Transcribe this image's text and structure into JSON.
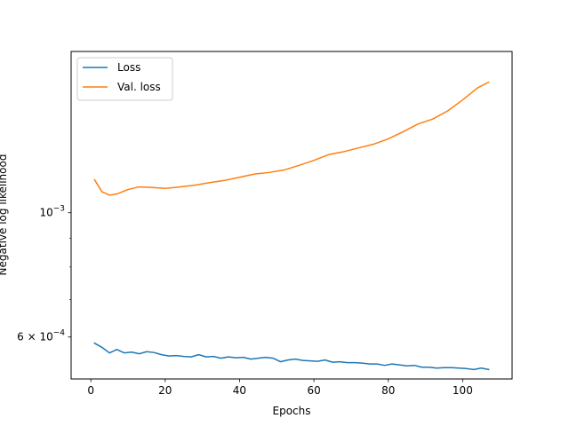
{
  "chart_data": {
    "type": "line",
    "title": "",
    "xlabel": "Epochs",
    "ylabel": "Negative log likelihood",
    "yscale": "log",
    "xlim": [
      -5.3,
      113.3
    ],
    "ylim": [
      0.000505,
      0.00194
    ],
    "grid": false,
    "legend_position": "top-left",
    "xticks": [
      {
        "value": 0,
        "label": "0"
      },
      {
        "value": 20,
        "label": "20"
      },
      {
        "value": 40,
        "label": "40"
      },
      {
        "value": 60,
        "label": "60"
      },
      {
        "value": 80,
        "label": "80"
      },
      {
        "value": 100,
        "label": "100"
      }
    ],
    "yticks": [
      {
        "value": 0.0006,
        "base": "6 × 10",
        "exp": "−4"
      },
      {
        "value": 0.001,
        "base": "10",
        "exp": "−3"
      }
    ],
    "series": [
      {
        "name": "Loss",
        "color": "#1f77b4",
        "x": [
          1,
          3,
          5,
          7,
          9,
          11,
          13,
          15,
          17,
          19,
          21,
          23,
          25,
          27,
          29,
          31,
          33,
          35,
          37,
          39,
          41,
          43,
          45,
          47,
          49,
          51,
          53,
          55,
          57,
          59,
          61,
          63,
          65,
          67,
          69,
          71,
          73,
          75,
          77,
          79,
          81,
          83,
          85,
          87,
          89,
          91,
          93,
          95,
          97,
          99,
          101,
          103,
          105,
          107
        ],
        "y": [
          0.000585,
          0.000575,
          0.000562,
          0.00057,
          0.000562,
          0.000564,
          0.00056,
          0.000565,
          0.000563,
          0.000558,
          0.000555,
          0.000556,
          0.000554,
          0.000553,
          0.000558,
          0.000553,
          0.000554,
          0.00055,
          0.000553,
          0.000551,
          0.000552,
          0.000548,
          0.00055,
          0.000552,
          0.00055,
          0.000542,
          0.000546,
          0.000548,
          0.000545,
          0.000544,
          0.000543,
          0.000546,
          0.000541,
          0.000542,
          0.00054,
          0.00054,
          0.000539,
          0.000537,
          0.000537,
          0.000534,
          0.000537,
          0.000535,
          0.000533,
          0.000534,
          0.00053,
          0.00053,
          0.000528,
          0.000529,
          0.000529,
          0.000528,
          0.000527,
          0.000525,
          0.000528,
          0.000525
        ]
      },
      {
        "name": "Val. loss",
        "color": "#ff7f0e",
        "x": [
          1,
          3,
          5,
          7,
          10,
          13,
          16,
          20,
          24,
          28,
          32,
          36,
          40,
          44,
          48,
          52,
          56,
          60,
          64,
          68,
          72,
          76,
          80,
          84,
          88,
          92,
          96,
          100,
          104,
          107
        ],
        "y": [
          0.001145,
          0.00109,
          0.001075,
          0.00108,
          0.0011,
          0.001112,
          0.00111,
          0.001105,
          0.001112,
          0.00112,
          0.001132,
          0.001142,
          0.001157,
          0.001172,
          0.00118,
          0.001192,
          0.001215,
          0.00124,
          0.00127,
          0.001285,
          0.001305,
          0.001325,
          0.001355,
          0.001395,
          0.00144,
          0.00147,
          0.00152,
          0.00159,
          0.00167,
          0.00171
        ]
      }
    ]
  }
}
